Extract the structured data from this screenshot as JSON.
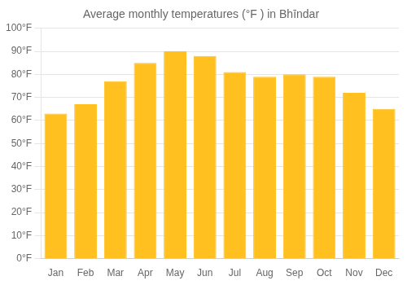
{
  "chart_data": {
    "type": "bar",
    "title": "Average monthly temperatures (°F ) in Bhīndar",
    "categories": [
      "Jan",
      "Feb",
      "Mar",
      "Apr",
      "May",
      "Jun",
      "Jul",
      "Aug",
      "Sep",
      "Oct",
      "Nov",
      "Dec"
    ],
    "values": [
      63,
      67,
      77,
      85,
      90,
      88,
      81,
      79,
      80,
      79,
      72,
      65
    ],
    "color": "#FFC020",
    "ylim": [
      0,
      100
    ],
    "yticks": [
      {
        "value": 0,
        "label": "0°F"
      },
      {
        "value": 10,
        "label": "10°F"
      },
      {
        "value": 20,
        "label": "20°F"
      },
      {
        "value": 30,
        "label": "30°F"
      },
      {
        "value": 40,
        "label": "40°F"
      },
      {
        "value": 50,
        "label": "50°F"
      },
      {
        "value": 60,
        "label": "60°F"
      },
      {
        "value": 70,
        "label": "70°F"
      },
      {
        "value": 80,
        "label": "80°F"
      },
      {
        "value": 90,
        "label": "90°F"
      },
      {
        "value": 100,
        "label": "100°F"
      }
    ],
    "grid": true
  }
}
